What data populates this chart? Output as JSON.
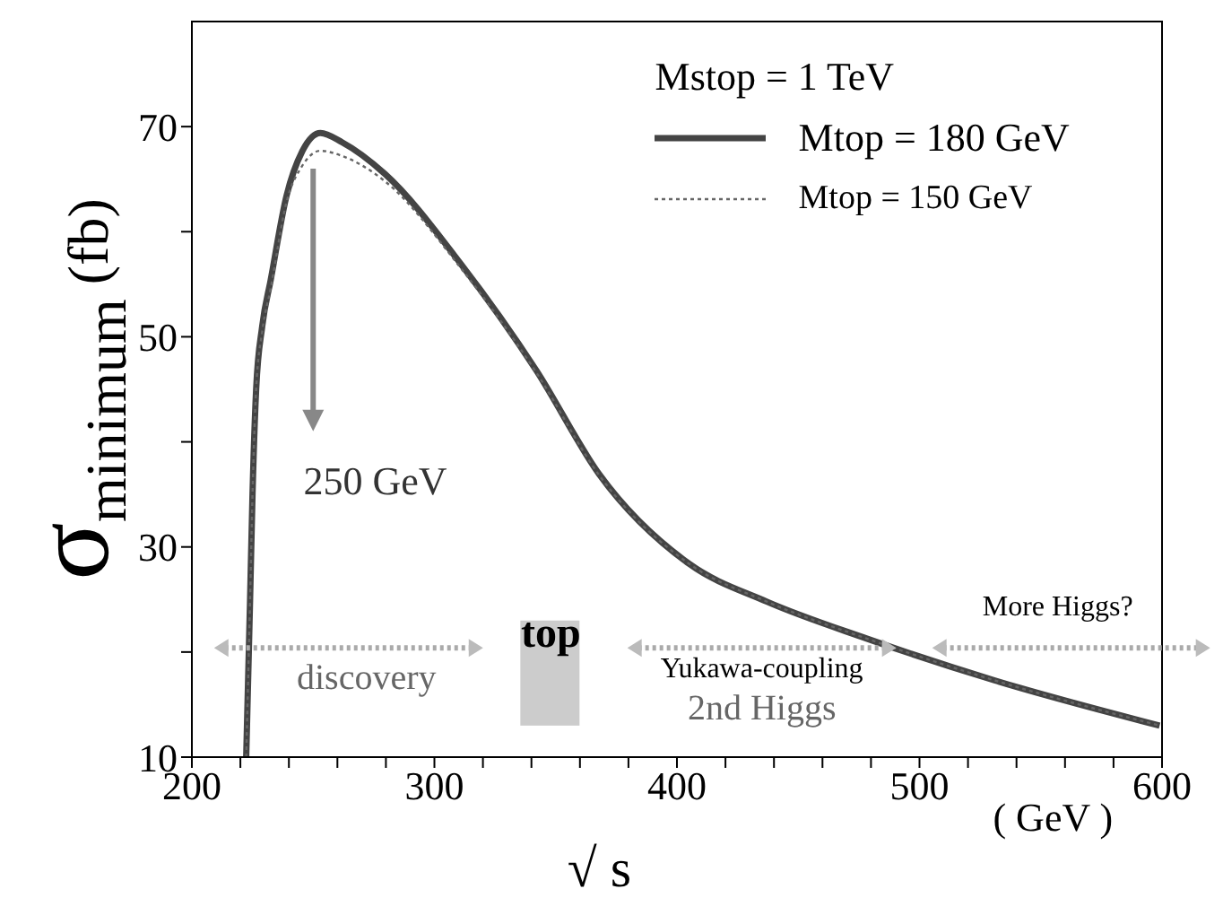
{
  "chart_data": {
    "type": "line",
    "ylabel": "σ$_{minimum}$   (fb)",
    "xlabel": "√ s",
    "legend_title": "Mstop = 1 TeV",
    "legend": "top right",
    "marker": "none",
    "xlim": [
      200,
      600
    ],
    "ylim": [
      10,
      80
    ],
    "xticks": [
      200,
      {
        "value": 220,
        "label": null
      },
      {
        "value": 240,
        "label": null
      },
      {
        "value": 260,
        "label": null
      },
      {
        "value": 280,
        "label": null
      },
      300,
      {
        "value": 320,
        "label": null
      },
      {
        "value": 340,
        "label": null
      },
      {
        "value": 360,
        "label": null
      },
      {
        "value": 380,
        "label": null
      },
      400,
      {
        "value": 420,
        "label": null
      },
      {
        "value": 440,
        "label": null
      },
      {
        "value": 460,
        "label": null
      },
      {
        "value": 480,
        "label": null
      },
      500,
      {
        "value": 520,
        "label": null
      },
      {
        "value": 540,
        "label": null
      },
      {
        "value": 560,
        "label": null
      },
      {
        "value": 580,
        "label": null
      },
      600
    ],
    "yticks": [
      10,
      {
        "value": 20,
        "label": null
      },
      30,
      {
        "value": 40,
        "label": null
      },
      50,
      {
        "value": 60,
        "label": null
      },
      70
    ],
    "series": [
      {
        "name": "Mtop = 180 GeV",
        "color": "#444444",
        "line_style": "solid",
        "x": [
          222.4,
          224,
          225,
          226.5,
          229,
          232.5,
          239,
          245.6,
          253,
          262,
          279.6,
          311,
          342,
          368,
          405,
          437,
          478,
          531,
          599
        ],
        "values": [
          10,
          25,
          35,
          45,
          51,
          55.4,
          63.4,
          67.7,
          69.4,
          68.5,
          65.5,
          56.9,
          46.8,
          36.9,
          28.4,
          24.8,
          21.3,
          17.3,
          13
        ]
      },
      {
        "name": "Mtop = 150 GeV",
        "color": "#666666",
        "line_style": "dotted",
        "x": [
          222.4,
          224,
          225,
          226.5,
          229,
          232.5,
          239,
          245.6,
          253,
          262,
          279.6,
          311,
          342,
          368,
          405,
          437,
          478,
          531,
          599
        ],
        "values": [
          10,
          25,
          35,
          45,
          50.5,
          54.6,
          62.8,
          66.3,
          67.7,
          67.2,
          64.8,
          56.5,
          46.6,
          36.8,
          28.4,
          24.8,
          21.3,
          17.3,
          13
        ]
      }
    ],
    "annotations": [
      "250 GeV",
      "discovery",
      "top",
      "Yukawa-coupling",
      "2nd Higgs",
      "More Higgs?",
      "( GeV )"
    ]
  }
}
